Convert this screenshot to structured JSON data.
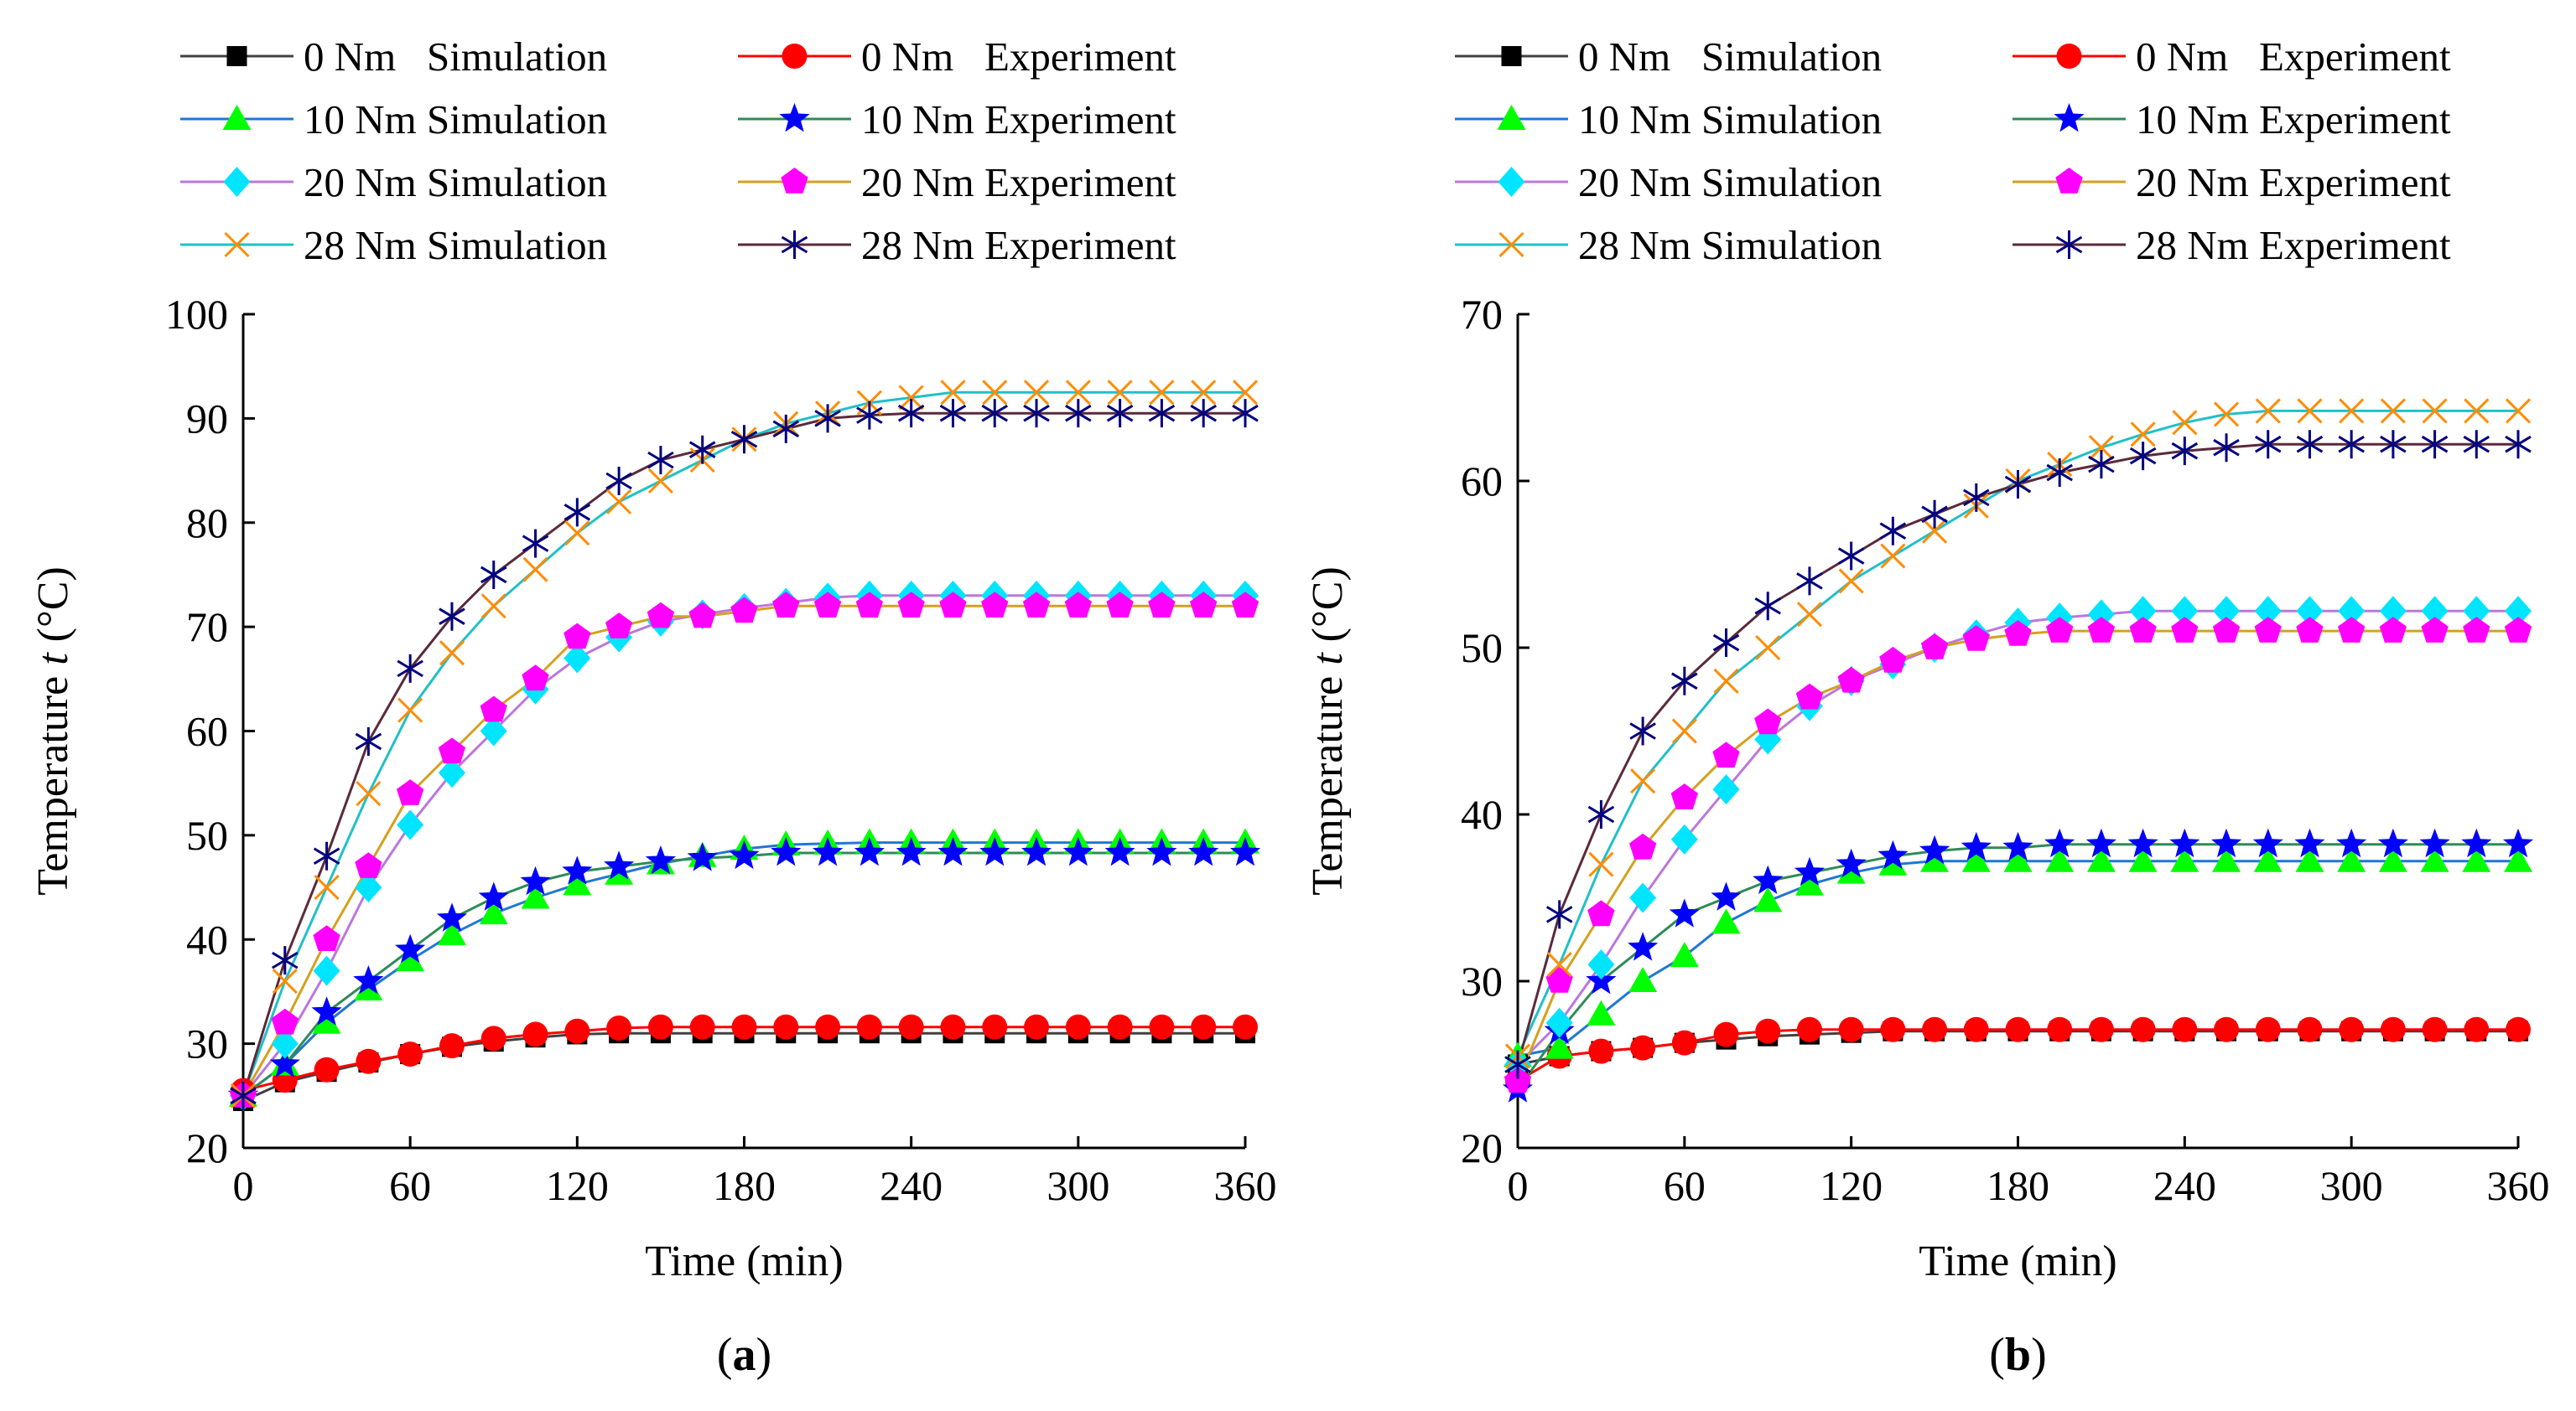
{
  "chart_data": [
    {
      "panel_label": "(a)",
      "panel_label_parts": [
        "(",
        "a",
        ")"
      ],
      "type": "line",
      "xlabel": "Time (min)",
      "ylabel_prefix": "Temperature ",
      "ylabel_var": "t",
      "ylabel_suffix": " (°C)",
      "xlim": [
        0,
        360
      ],
      "ylim": [
        20,
        100
      ],
      "xticks": [
        0,
        60,
        120,
        180,
        240,
        300,
        360
      ],
      "yticks": [
        20,
        30,
        40,
        50,
        60,
        70,
        80,
        90,
        100
      ],
      "legend_position": "top",
      "grid": false,
      "series": [
        {
          "name": "0 Nm   Simulation",
          "line_color": "#404040",
          "marker": "square",
          "marker_color": "#000000",
          "x": [
            0,
            15,
            30,
            45,
            60,
            75,
            90,
            105,
            120,
            135,
            150,
            165,
            180,
            195,
            210,
            225,
            240,
            255,
            270,
            285,
            300,
            315,
            330,
            345,
            360
          ],
          "y": [
            24.5,
            26.3,
            27.3,
            28.2,
            29.0,
            29.7,
            30.2,
            30.6,
            30.9,
            31.0,
            31.0,
            31.0,
            31.0,
            31.0,
            31.0,
            31.0,
            31.0,
            31.0,
            31.0,
            31.0,
            31.0,
            31.0,
            31.0,
            31.0,
            31.0
          ]
        },
        {
          "name": "0 Nm   Experiment",
          "line_color": "#ff0000",
          "marker": "circle",
          "marker_color": "#ff0000",
          "x": [
            0,
            15,
            30,
            45,
            60,
            75,
            90,
            105,
            120,
            135,
            150,
            165,
            180,
            195,
            210,
            225,
            240,
            255,
            270,
            285,
            300,
            315,
            330,
            345,
            360
          ],
          "y": [
            25.5,
            26.5,
            27.5,
            28.3,
            29.0,
            29.8,
            30.5,
            30.9,
            31.2,
            31.5,
            31.6,
            31.6,
            31.6,
            31.6,
            31.6,
            31.6,
            31.6,
            31.6,
            31.6,
            31.6,
            31.6,
            31.6,
            31.6,
            31.6,
            31.6
          ]
        },
        {
          "name": "10 Nm Simulation",
          "line_color": "#1f77d4",
          "marker": "triangle",
          "marker_color": "#00ff00",
          "x": [
            0,
            15,
            30,
            45,
            60,
            75,
            90,
            105,
            120,
            135,
            150,
            165,
            180,
            195,
            210,
            225,
            240,
            255,
            270,
            285,
            300,
            315,
            330,
            345,
            360
          ],
          "y": [
            25.0,
            28.0,
            32.0,
            35.2,
            38.0,
            40.5,
            42.5,
            44.0,
            45.3,
            46.3,
            47.3,
            48.0,
            48.7,
            49.1,
            49.2,
            49.3,
            49.3,
            49.3,
            49.3,
            49.3,
            49.3,
            49.3,
            49.3,
            49.3,
            49.3
          ]
        },
        {
          "name": "10 Nm Experiment",
          "line_color": "#2e8b57",
          "marker": "star",
          "marker_color": "#0000ff",
          "x": [
            0,
            15,
            30,
            45,
            60,
            75,
            90,
            105,
            120,
            135,
            150,
            165,
            180,
            195,
            210,
            225,
            240,
            255,
            270,
            285,
            300,
            315,
            330,
            345,
            360
          ],
          "y": [
            25.0,
            28.0,
            33.0,
            36.0,
            39.0,
            42.0,
            44.0,
            45.5,
            46.5,
            47.0,
            47.5,
            47.8,
            48.0,
            48.3,
            48.3,
            48.3,
            48.3,
            48.3,
            48.3,
            48.3,
            48.3,
            48.3,
            48.3,
            48.3,
            48.3
          ]
        },
        {
          "name": "20 Nm Simulation",
          "line_color": "#bb77dd",
          "marker": "diamond",
          "marker_color": "#00e5ff",
          "x": [
            0,
            15,
            30,
            45,
            60,
            75,
            90,
            105,
            120,
            135,
            150,
            165,
            180,
            195,
            210,
            225,
            240,
            255,
            270,
            285,
            300,
            315,
            330,
            345,
            360
          ],
          "y": [
            25.0,
            30.0,
            37.0,
            45.0,
            51.0,
            56.0,
            60.0,
            64.0,
            67.0,
            69.0,
            70.5,
            71.2,
            71.8,
            72.3,
            72.8,
            73.0,
            73.0,
            73.0,
            73.0,
            73.0,
            73.0,
            73.0,
            73.0,
            73.0,
            73.0
          ]
        },
        {
          "name": "20 Nm Experiment",
          "line_color": "#d4a020",
          "marker": "pentagon",
          "marker_color": "#ff00ff",
          "x": [
            0,
            15,
            30,
            45,
            60,
            75,
            90,
            105,
            120,
            135,
            150,
            165,
            180,
            195,
            210,
            225,
            240,
            255,
            270,
            285,
            300,
            315,
            330,
            345,
            360
          ],
          "y": [
            25.0,
            32.0,
            40.0,
            47.0,
            54.0,
            58.0,
            62.0,
            65.0,
            69.0,
            70.0,
            71.0,
            71.0,
            71.5,
            72.0,
            72.0,
            72.0,
            72.0,
            72.0,
            72.0,
            72.0,
            72.0,
            72.0,
            72.0,
            72.0,
            72.0
          ]
        },
        {
          "name": "28 Nm Simulation",
          "line_color": "#20c0c8",
          "marker": "x",
          "marker_color": "#ff8c00",
          "x": [
            0,
            15,
            30,
            45,
            60,
            75,
            90,
            105,
            120,
            135,
            150,
            165,
            180,
            195,
            210,
            225,
            240,
            255,
            270,
            285,
            300,
            315,
            330,
            345,
            360
          ],
          "y": [
            25.0,
            36.0,
            45.0,
            54.0,
            62.0,
            67.5,
            72.0,
            75.5,
            79.0,
            82.0,
            84.0,
            86.0,
            88.0,
            89.5,
            90.5,
            91.5,
            92.0,
            92.5,
            92.5,
            92.5,
            92.5,
            92.5,
            92.5,
            92.5,
            92.5
          ]
        },
        {
          "name": "28 Nm Experiment",
          "line_color": "#5a2a3a",
          "marker": "asterisk",
          "marker_color": "#000080",
          "x": [
            0,
            15,
            30,
            45,
            60,
            75,
            90,
            105,
            120,
            135,
            150,
            165,
            180,
            195,
            210,
            225,
            240,
            255,
            270,
            285,
            300,
            315,
            330,
            345,
            360
          ],
          "y": [
            25.0,
            38.0,
            48.0,
            59.0,
            66.0,
            71.0,
            75.0,
            78.0,
            81.0,
            84.0,
            86.0,
            87.0,
            88.0,
            89.0,
            90.0,
            90.3,
            90.5,
            90.5,
            90.5,
            90.5,
            90.5,
            90.5,
            90.5,
            90.5,
            90.5
          ]
        }
      ]
    },
    {
      "panel_label": "(b)",
      "panel_label_parts": [
        "(",
        "b",
        ")"
      ],
      "type": "line",
      "xlabel": "Time (min)",
      "ylabel_prefix": "Temperature ",
      "ylabel_var": "t",
      "ylabel_suffix": " (°C)",
      "xlim": [
        0,
        360
      ],
      "ylim": [
        20,
        70
      ],
      "xticks": [
        0,
        60,
        120,
        180,
        240,
        300,
        360
      ],
      "yticks": [
        20,
        30,
        40,
        50,
        60,
        70
      ],
      "legend_position": "top",
      "grid": false,
      "series": [
        {
          "name": "0 Nm   Simulation",
          "line_color": "#404040",
          "marker": "square",
          "marker_color": "#000000",
          "x": [
            0,
            15,
            30,
            45,
            60,
            75,
            90,
            105,
            120,
            135,
            150,
            165,
            180,
            195,
            210,
            225,
            240,
            255,
            270,
            285,
            300,
            315,
            330,
            345,
            360
          ],
          "y": [
            25.0,
            25.5,
            25.8,
            26.0,
            26.3,
            26.5,
            26.7,
            26.8,
            26.9,
            27.0,
            27.0,
            27.0,
            27.0,
            27.0,
            27.0,
            27.0,
            27.0,
            27.0,
            27.0,
            27.0,
            27.0,
            27.0,
            27.0,
            27.0,
            27.0
          ]
        },
        {
          "name": "0 Nm   Experiment",
          "line_color": "#ff0000",
          "marker": "circle",
          "marker_color": "#ff0000",
          "x": [
            0,
            15,
            30,
            45,
            60,
            75,
            90,
            105,
            120,
            135,
            150,
            165,
            180,
            195,
            210,
            225,
            240,
            255,
            270,
            285,
            300,
            315,
            330,
            345,
            360
          ],
          "y": [
            24.0,
            25.5,
            25.8,
            26.0,
            26.3,
            26.8,
            27.0,
            27.1,
            27.1,
            27.1,
            27.1,
            27.1,
            27.1,
            27.1,
            27.1,
            27.1,
            27.1,
            27.1,
            27.1,
            27.1,
            27.1,
            27.1,
            27.1,
            27.1,
            27.1
          ]
        },
        {
          "name": "10 Nm Simulation",
          "line_color": "#1f77d4",
          "marker": "triangle",
          "marker_color": "#00ff00",
          "x": [
            0,
            15,
            30,
            45,
            60,
            75,
            90,
            105,
            120,
            135,
            150,
            165,
            180,
            195,
            210,
            225,
            240,
            255,
            270,
            285,
            300,
            315,
            330,
            345,
            360
          ],
          "y": [
            25.5,
            26.0,
            28.0,
            30.0,
            31.5,
            33.5,
            34.8,
            35.8,
            36.5,
            37.0,
            37.2,
            37.2,
            37.2,
            37.2,
            37.2,
            37.2,
            37.2,
            37.2,
            37.2,
            37.2,
            37.2,
            37.2,
            37.2,
            37.2,
            37.2
          ]
        },
        {
          "name": "10 Nm Experiment",
          "line_color": "#2e8b57",
          "marker": "star",
          "marker_color": "#0000ff",
          "x": [
            0,
            15,
            30,
            45,
            60,
            75,
            90,
            105,
            120,
            135,
            150,
            165,
            180,
            195,
            210,
            225,
            240,
            255,
            270,
            285,
            300,
            315,
            330,
            345,
            360
          ],
          "y": [
            23.5,
            27.0,
            30.0,
            32.0,
            34.0,
            35.0,
            36.0,
            36.5,
            37.0,
            37.5,
            37.8,
            38.0,
            38.0,
            38.2,
            38.2,
            38.2,
            38.2,
            38.2,
            38.2,
            38.2,
            38.2,
            38.2,
            38.2,
            38.2,
            38.2
          ]
        },
        {
          "name": "20 Nm Simulation",
          "line_color": "#bb77dd",
          "marker": "diamond",
          "marker_color": "#00e5ff",
          "x": [
            0,
            15,
            30,
            45,
            60,
            75,
            90,
            105,
            120,
            135,
            150,
            165,
            180,
            195,
            210,
            225,
            240,
            255,
            270,
            285,
            300,
            315,
            330,
            345,
            360
          ],
          "y": [
            25.0,
            27.5,
            31.0,
            35.0,
            38.5,
            41.5,
            44.5,
            46.5,
            48.0,
            49.0,
            50.0,
            50.8,
            51.5,
            51.8,
            52.0,
            52.2,
            52.2,
            52.2,
            52.2,
            52.2,
            52.2,
            52.2,
            52.2,
            52.2,
            52.2
          ]
        },
        {
          "name": "20 Nm Experiment",
          "line_color": "#d4a020",
          "marker": "pentagon",
          "marker_color": "#ff00ff",
          "x": [
            0,
            15,
            30,
            45,
            60,
            75,
            90,
            105,
            120,
            135,
            150,
            165,
            180,
            195,
            210,
            225,
            240,
            255,
            270,
            285,
            300,
            315,
            330,
            345,
            360
          ],
          "y": [
            24.0,
            30.0,
            34.0,
            38.0,
            41.0,
            43.5,
            45.5,
            47.0,
            48.0,
            49.2,
            50.0,
            50.5,
            50.8,
            51.0,
            51.0,
            51.0,
            51.0,
            51.0,
            51.0,
            51.0,
            51.0,
            51.0,
            51.0,
            51.0,
            51.0
          ]
        },
        {
          "name": "28 Nm Simulation",
          "line_color": "#20c0c8",
          "marker": "x",
          "marker_color": "#ff8c00",
          "x": [
            0,
            15,
            30,
            45,
            60,
            75,
            90,
            105,
            120,
            135,
            150,
            165,
            180,
            195,
            210,
            225,
            240,
            255,
            270,
            285,
            300,
            315,
            330,
            345,
            360
          ],
          "y": [
            25.5,
            31.0,
            37.0,
            42.0,
            45.0,
            48.0,
            50.0,
            52.0,
            54.0,
            55.5,
            57.0,
            58.5,
            60.0,
            61.0,
            62.0,
            62.8,
            63.5,
            64.0,
            64.2,
            64.2,
            64.2,
            64.2,
            64.2,
            64.2,
            64.2
          ]
        },
        {
          "name": "28 Nm Experiment",
          "line_color": "#5a2a3a",
          "marker": "asterisk",
          "marker_color": "#000080",
          "x": [
            0,
            15,
            30,
            45,
            60,
            75,
            90,
            105,
            120,
            135,
            150,
            165,
            180,
            195,
            210,
            225,
            240,
            255,
            270,
            285,
            300,
            315,
            330,
            345,
            360
          ],
          "y": [
            25.0,
            34.0,
            40.0,
            45.0,
            48.0,
            50.3,
            52.5,
            54.0,
            55.5,
            57.0,
            58.0,
            59.0,
            59.8,
            60.5,
            61.0,
            61.5,
            61.8,
            62.0,
            62.2,
            62.2,
            62.2,
            62.2,
            62.2,
            62.2,
            62.2
          ]
        }
      ]
    }
  ]
}
